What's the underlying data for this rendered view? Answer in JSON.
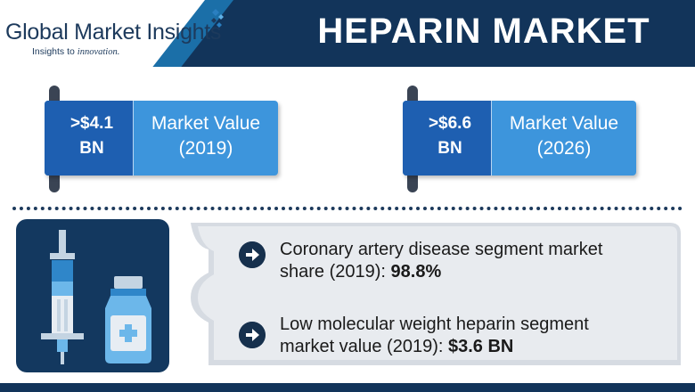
{
  "brand": {
    "name": "Global Market Insights",
    "tagline_prefix": "Insights to ",
    "tagline_emphasis": "innovation."
  },
  "title": "HEPARIN MARKET",
  "values": [
    {
      "amount_line1": ">$4.1",
      "amount_line2": "BN",
      "label_line1": "Market Value",
      "label_line2": "(2019)"
    },
    {
      "amount_line1": ">$6.6",
      "amount_line2": "BN",
      "label_line1": "Market Value",
      "label_line2": "(2026)"
    }
  ],
  "stats": [
    {
      "line1": "Coronary artery disease segment market",
      "line2_prefix": "share (2019): ",
      "line2_value": "98.8%"
    },
    {
      "line1": "Low molecular weight heparin segment",
      "line2_prefix": "market value (2019): ",
      "line2_value": "$3.6 BN"
    }
  ],
  "icons": {
    "syringe": "syringe-icon",
    "vial": "medicine-vial-icon",
    "arrow": "arrow-right-circle-icon",
    "logo": "diamond-logo-icon"
  },
  "colors": {
    "navy": "#12345a",
    "value_blue": "#1e5fb1",
    "label_blue": "#3d95dc",
    "panel_grey": "#e6e9ee"
  }
}
